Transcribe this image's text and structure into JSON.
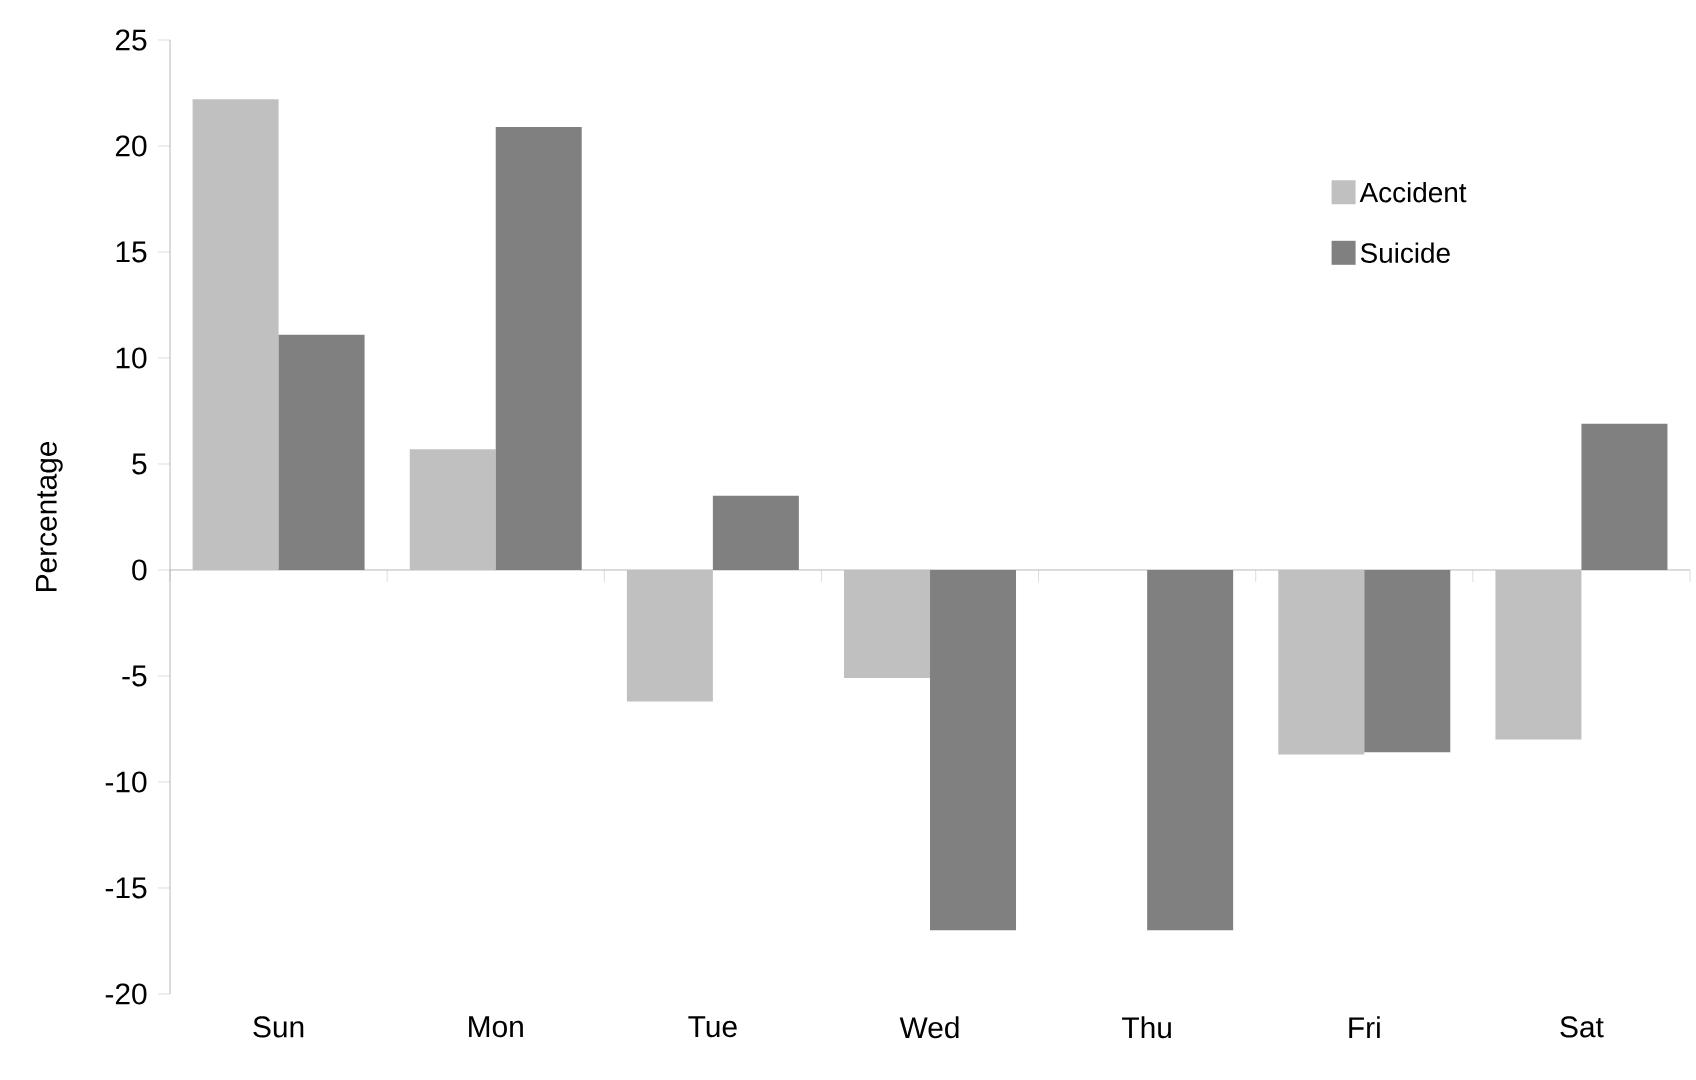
{
  "chart_data": {
    "type": "bar",
    "ylabel": "Percentage",
    "categories": [
      "Sun",
      "Mon",
      "Tue",
      "Wed",
      "Thu",
      "Fri",
      "Sat"
    ],
    "series": [
      {
        "name": "Accident",
        "color": "#c0c0c0",
        "values": [
          22.2,
          5.7,
          -6.2,
          -5.1,
          0,
          -8.7,
          -8.0
        ]
      },
      {
        "name": "Suicide",
        "color": "#808080",
        "values": [
          11.1,
          20.9,
          3.5,
          -17.0,
          -17.0,
          -8.6,
          6.9
        ]
      }
    ],
    "ylim": [
      -20,
      25
    ],
    "yticks": [
      -20,
      -15,
      -10,
      -5,
      0,
      5,
      10,
      15,
      20,
      25
    ],
    "legend": "top right"
  }
}
